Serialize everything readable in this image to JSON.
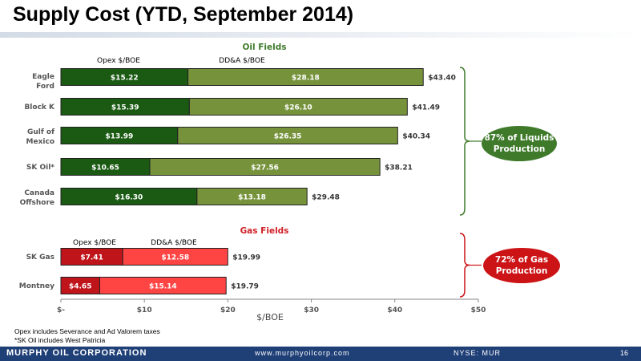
{
  "slide": {
    "title": "Supply Cost (YTD, September 2014)",
    "page_number": "16",
    "company": "MURPHY OIL CORPORATION",
    "website": "www.murphyoilcorp.com",
    "ticker": "NYSE: MUR",
    "footnotes": [
      "Opex includes Severance and Ad Valorem taxes",
      "*SK Oil includes West Patricia"
    ]
  },
  "chart_data": {
    "type": "bar",
    "orientation": "horizontal",
    "stacked": true,
    "xlabel": "$/BOE",
    "xlim": [
      0,
      50
    ],
    "xticks": [
      "$-",
      "$10",
      "$20",
      "$30",
      "$40",
      "$50"
    ],
    "grid": false,
    "groups": [
      {
        "title": "Oil Fields",
        "series_labels": [
          "Opex $/BOE",
          "DD&A $/BOE"
        ],
        "colors": [
          "#1a5a13",
          "#76933c"
        ],
        "title_color": "#3e7a2a",
        "categories": [
          "Eagle Ford",
          "Block K",
          "Gulf of Mexico",
          "SK Oil*",
          "Canada Offshore"
        ],
        "series": [
          {
            "name": "Opex $/BOE",
            "values": [
              15.22,
              15.39,
              13.99,
              10.65,
              16.3
            ],
            "labels": [
              "$15.22",
              "$15.39",
              "$13.99",
              "$10.65",
              "$16.30"
            ]
          },
          {
            "name": "DD&A $/BOE",
            "values": [
              28.18,
              26.1,
              26.35,
              27.56,
              13.18
            ],
            "labels": [
              "$28.18",
              "$26.10",
              "$26.35",
              "$27.56",
              "$13.18"
            ]
          }
        ],
        "totals": [
          43.4,
          41.49,
          40.34,
          38.21,
          29.48
        ],
        "total_labels": [
          "$43.40",
          "$41.49",
          "$40.34",
          "$38.21",
          "$29.48"
        ],
        "callout": "87% of Liquids Production",
        "callout_color": "#3e7a2a"
      },
      {
        "title": "Gas Fields",
        "series_labels": [
          "Opex $/BOE",
          "DD&A $/BOE"
        ],
        "colors": [
          "#c0141b",
          "#ff4444"
        ],
        "title_color": "#d01f26",
        "categories": [
          "SK Gas",
          "Montney"
        ],
        "series": [
          {
            "name": "Opex $/BOE",
            "values": [
              7.41,
              4.65
            ],
            "labels": [
              "$7.41",
              "$4.65"
            ]
          },
          {
            "name": "DD&A $/BOE",
            "values": [
              12.58,
              15.14
            ],
            "labels": [
              "$12.58",
              "$15.14"
            ]
          }
        ],
        "totals": [
          19.99,
          19.79
        ],
        "total_labels": [
          "$19.99",
          "$19.79"
        ],
        "callout": "72% of Gas Production",
        "callout_color": "#cc1417"
      }
    ]
  }
}
